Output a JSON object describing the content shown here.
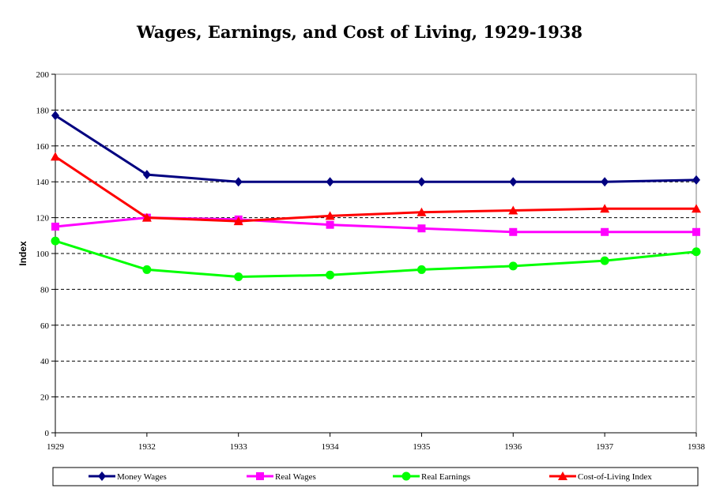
{
  "chart_data": {
    "type": "line",
    "title": "Wages, Earnings, and Cost of Living, 1929-1938",
    "xlabel": "",
    "ylabel": "Index",
    "categories": [
      "1929",
      "1932",
      "1933",
      "1934",
      "1935",
      "1936",
      "1937",
      "1938"
    ],
    "ylim": [
      0,
      200
    ],
    "yticks": [
      0,
      20,
      40,
      60,
      80,
      100,
      120,
      140,
      160,
      180,
      200
    ],
    "grid": "horizontal dashed",
    "legend_position": "bottom",
    "series": [
      {
        "name": "Money Wages",
        "color": "#000080",
        "marker": "diamond",
        "values": [
          177,
          144,
          140,
          140,
          140,
          140,
          140,
          141
        ]
      },
      {
        "name": "Real Wages",
        "color": "#ff00ff",
        "marker": "square",
        "values": [
          115,
          120,
          119,
          116,
          114,
          112,
          112,
          112
        ]
      },
      {
        "name": "Real Earnings",
        "color": "#00ff00",
        "marker": "circle",
        "values": [
          107,
          91,
          87,
          88,
          91,
          93,
          96,
          101
        ]
      },
      {
        "name": "Cost-of-Living Index",
        "color": "#ff0000",
        "marker": "triangle",
        "values": [
          154,
          120,
          118,
          121,
          123,
          124,
          125,
          125
        ]
      }
    ]
  }
}
